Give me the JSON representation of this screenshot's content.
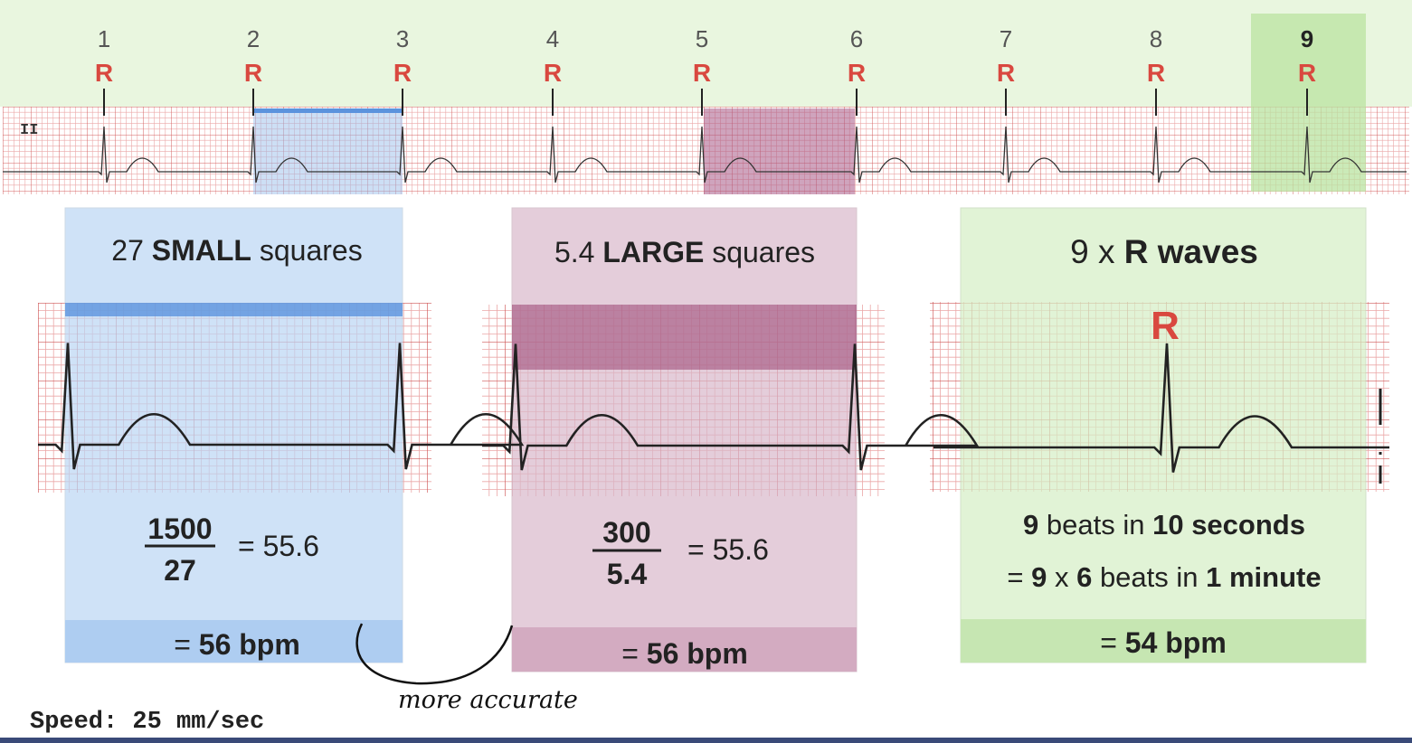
{
  "strip": {
    "lead": "II",
    "beats": [
      {
        "number": 1,
        "label": "R"
      },
      {
        "number": 2,
        "label": "R"
      },
      {
        "number": 3,
        "label": "R"
      },
      {
        "number": 4,
        "label": "R"
      },
      {
        "number": 5,
        "label": "R"
      },
      {
        "number": 6,
        "label": "R"
      },
      {
        "number": 7,
        "label": "R"
      },
      {
        "number": 8,
        "label": "R"
      },
      {
        "number": 9,
        "label": "R"
      }
    ]
  },
  "panels": [
    {
      "heading": [
        "27 ",
        "SMALL",
        " squares"
      ],
      "numerator": "1500",
      "denominator": "27",
      "equals": "= 55.6",
      "result": [
        "= ",
        "56 bpm"
      ]
    },
    {
      "heading": [
        "5.4 ",
        "LARGE",
        " squares"
      ],
      "numerator": "300",
      "denominator": "5.4",
      "equals": "= 55.6",
      "result": [
        "= ",
        "56 bpm"
      ]
    },
    {
      "heading": [
        "9 x ",
        "R waves"
      ],
      "marker": "R",
      "line1": [
        "9",
        " beats in ",
        "10 seconds"
      ],
      "line2": [
        "= ",
        "9",
        " x ",
        "6",
        " beats in ",
        "1 minute"
      ],
      "result": [
        "= ",
        "54 bpm"
      ]
    }
  ],
  "speed": "Speed: 25 mm/sec",
  "annotation": "more accurate"
}
